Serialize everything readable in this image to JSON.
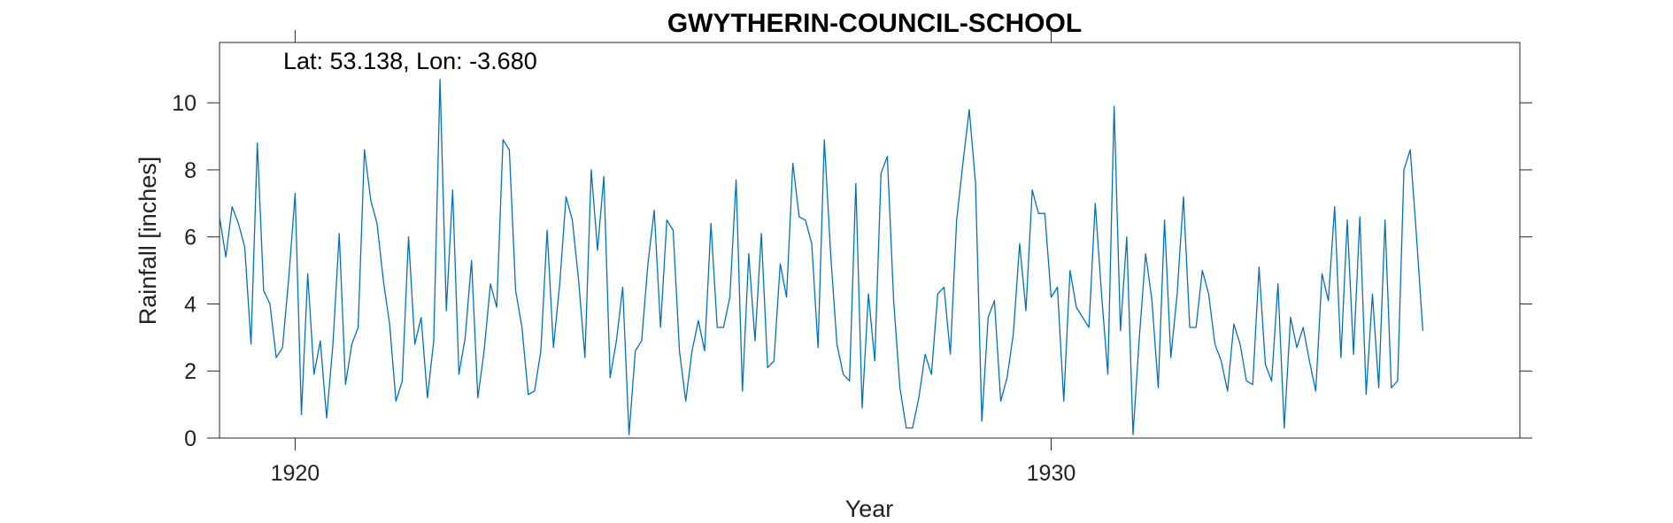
{
  "chart_data": {
    "type": "line",
    "title": "GWYTHERIN-COUNCIL-SCHOOL",
    "xlabel": "Year",
    "ylabel": "Rainfall [inches]",
    "annotation": "Lat: 53.138, Lon: -3.680",
    "xlim": [
      1919.0,
      1936.2
    ],
    "ylim": [
      0,
      11.8
    ],
    "x_ticks": [
      1920,
      1930
    ],
    "x_tick_labels": [
      "1920",
      "1930"
    ],
    "y_ticks": [
      0,
      2,
      4,
      6,
      8,
      10
    ],
    "y_tick_labels": [
      "0",
      "2",
      "4",
      "6",
      "8",
      "10"
    ],
    "x_start": 1919.0,
    "x_step": 0.0833333,
    "grid": false,
    "line_color": "#0072BD",
    "series": [
      {
        "values": [
          6.6,
          5.4,
          6.9,
          6.4,
          5.7,
          2.8,
          8.8,
          4.4,
          4.0,
          2.4,
          2.7,
          4.8,
          7.3,
          0.7,
          4.9,
          1.9,
          2.9,
          0.6,
          2.8,
          6.1,
          1.6,
          2.8,
          3.3,
          8.6,
          7.1,
          6.4,
          4.7,
          3.4,
          1.1,
          1.7,
          6.0,
          2.8,
          3.6,
          1.2,
          2.9,
          10.7,
          3.8,
          7.4,
          1.9,
          3.0,
          5.3,
          1.2,
          2.6,
          4.6,
          3.9,
          8.9,
          8.6,
          4.4,
          3.3,
          1.3,
          1.4,
          2.6,
          6.2,
          2.7,
          4.6,
          7.2,
          6.5,
          4.7,
          2.4,
          8.0,
          5.6,
          7.8,
          1.8,
          2.9,
          4.5,
          0.1,
          2.6,
          2.9,
          5.2,
          6.8,
          3.3,
          6.5,
          6.2,
          2.6,
          1.1,
          2.6,
          3.5,
          2.6,
          6.4,
          3.3,
          3.3,
          4.2,
          7.7,
          1.4,
          5.5,
          2.9,
          6.1,
          2.1,
          2.3,
          5.2,
          4.2,
          8.2,
          6.6,
          6.5,
          5.8,
          2.7,
          8.9,
          5.5,
          2.8,
          1.9,
          1.7,
          7.6,
          0.9,
          4.3,
          2.3,
          7.9,
          8.4,
          4.1,
          1.5,
          0.3,
          0.3,
          1.2,
          2.5,
          1.9,
          4.3,
          4.5,
          2.5,
          6.5,
          8.2,
          9.8,
          7.6,
          0.5,
          3.6,
          4.1,
          1.1,
          1.8,
          3.1,
          5.8,
          3.8,
          7.4,
          6.7,
          6.7,
          4.2,
          4.5,
          1.1,
          5.0,
          3.9,
          3.6,
          3.3,
          7.0,
          4.3,
          1.9,
          9.9,
          3.2,
          6.0,
          0.1,
          3.0,
          5.5,
          4.1,
          1.5,
          6.5,
          2.4,
          4.3,
          7.2,
          3.3,
          3.3,
          5.0,
          4.3,
          2.8,
          2.3,
          1.4,
          3.4,
          2.8,
          1.7,
          1.6,
          5.1,
          2.2,
          1.7,
          4.6,
          0.3,
          3.6,
          2.7,
          3.3,
          2.3,
          1.4,
          4.9,
          4.1,
          6.9,
          2.4,
          6.5,
          2.5,
          6.6,
          1.3,
          4.3,
          1.5,
          6.5,
          1.5,
          1.7,
          8.0,
          8.6,
          6.0,
          3.2
        ]
      }
    ]
  }
}
